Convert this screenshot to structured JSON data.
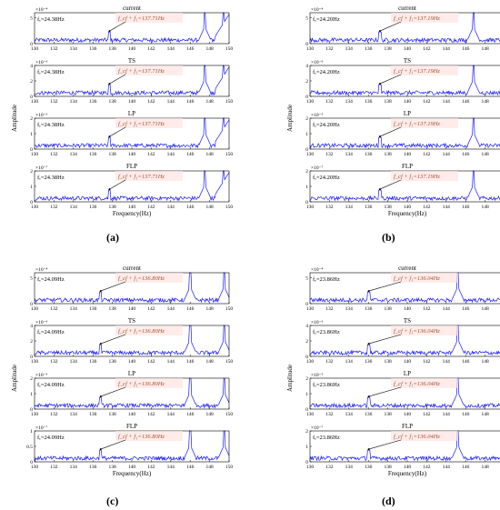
{
  "figure": {
    "panel_labels": [
      "(a)",
      "(b)",
      "(c)",
      "(d)"
    ],
    "x_axis_label": "Frequency(Hz)",
    "y_axis_label": "Amplitude"
  },
  "colors": {
    "signal": "#1a1aff",
    "annotation_text": "#a0522d",
    "highlight_fill": "#ffe4e1",
    "fundamental_text": "#000000"
  },
  "chart_data": [
    {
      "panel": "(a)",
      "type": "line",
      "xlim": [
        130,
        150
      ],
      "xticks": [
        "130",
        "132",
        "134",
        "136",
        "138",
        "140",
        "142",
        "144",
        "146",
        "148",
        "150"
      ],
      "xlabel": "Frequency(Hz)",
      "subplots": [
        {
          "title": "current",
          "exponent": "×10⁻⁴",
          "ylim": [
            0,
            6
          ],
          "yticks": [
            "0",
            "5"
          ],
          "fundamental": "fₑ=24.38Hz",
          "feature_freq": 137.71,
          "feature_label": "f_cf + f₁=137.71Hz",
          "dominant_peaks": [
            147.5,
            149.4
          ]
        },
        {
          "title": "TS",
          "exponent": "×10⁻⁶",
          "ylim": [
            0,
            4
          ],
          "yticks": [
            "0",
            "2",
            "4"
          ],
          "fundamental": "fₑ=24.38Hz",
          "feature_freq": 137.71,
          "feature_label": "f_cf + f₁=137.71Hz",
          "dominant_peaks": [
            147.5,
            149.4
          ]
        },
        {
          "title": "LP",
          "exponent": "×10⁻⁵",
          "ylim": [
            0,
            2
          ],
          "yticks": [
            "0",
            "1",
            "2"
          ],
          "fundamental": "fₑ=24.38Hz",
          "feature_freq": 137.71,
          "feature_label": "f_cf + f₁=137.71Hz",
          "dominant_peaks": [
            147.5,
            149.4
          ]
        },
        {
          "title": "FLP",
          "exponent": "×10⁻⁷",
          "ylim": [
            0,
            2
          ],
          "yticks": [
            "0",
            "1",
            "2"
          ],
          "fundamental": "fₑ=24.38Hz",
          "feature_freq": 137.71,
          "feature_label": "f_cf + f₁=137.71Hz",
          "dominant_peaks": [
            147.5,
            149.4
          ]
        }
      ]
    },
    {
      "panel": "(b)",
      "type": "line",
      "xlim": [
        130,
        150
      ],
      "xticks": [
        "130",
        "132",
        "134",
        "136",
        "138",
        "140",
        "142",
        "144",
        "146",
        "148",
        "150"
      ],
      "xlabel": "Frequency(Hz)",
      "subplots": [
        {
          "title": "current",
          "exponent": "×10⁻⁴",
          "ylim": [
            0,
            6
          ],
          "yticks": [
            "0",
            "5"
          ],
          "fundamental": "fₑ=24.20Hz",
          "feature_freq": 137.19,
          "feature_label": "f_cf + f₁=137.19Hz",
          "dominant_peaks": [
            146.8
          ]
        },
        {
          "title": "TS",
          "exponent": "×10⁻⁶",
          "ylim": [
            0,
            4
          ],
          "yticks": [
            "0",
            "2",
            "4"
          ],
          "fundamental": "fₑ=24.20Hz",
          "feature_freq": 137.19,
          "feature_label": "f_cf + f₁=137.19Hz",
          "dominant_peaks": [
            146.8
          ]
        },
        {
          "title": "LP",
          "exponent": "×10⁻⁵",
          "ylim": [
            0,
            2
          ],
          "yticks": [
            "0",
            "1",
            "2"
          ],
          "fundamental": "fₑ=24.20Hz",
          "feature_freq": 137.19,
          "feature_label": "f_cf + f₁=137.19Hz",
          "dominant_peaks": [
            146.8
          ]
        },
        {
          "title": "FLP",
          "exponent": "×10⁻⁷",
          "ylim": [
            0,
            2
          ],
          "yticks": [
            "0",
            "1",
            "2"
          ],
          "fundamental": "fₑ=24.20Hz",
          "feature_freq": 137.19,
          "feature_label": "f_cf + f₁=137.19Hz",
          "dominant_peaks": [
            146.8
          ]
        }
      ]
    },
    {
      "panel": "(c)",
      "type": "line",
      "xlim": [
        130,
        150
      ],
      "xticks": [
        "130",
        "132",
        "134",
        "136",
        "138",
        "140",
        "142",
        "144",
        "146",
        "148",
        "150"
      ],
      "xlabel": "Frequency(Hz)",
      "subplots": [
        {
          "title": "current",
          "exponent": "×10⁻⁴",
          "ylim": [
            0,
            6
          ],
          "yticks": [
            "0",
            "5"
          ],
          "fundamental": "fₑ=24.09Hz",
          "feature_freq": 136.8,
          "feature_label": "f_cf + f₁=136.80Hz",
          "dominant_peaks": [
            146.0,
            149.5
          ]
        },
        {
          "title": "TS",
          "exponent": "×10⁻⁶",
          "ylim": [
            0,
            4
          ],
          "yticks": [
            "0",
            "2",
            "4"
          ],
          "fundamental": "fₑ=24.09Hz",
          "feature_freq": 136.8,
          "feature_label": "f_cf + f₁=136.80Hz",
          "dominant_peaks": [
            146.0,
            149.5
          ]
        },
        {
          "title": "LP",
          "exponent": "×10⁻⁵",
          "ylim": [
            0,
            2
          ],
          "yticks": [
            "0",
            "1",
            "2"
          ],
          "fundamental": "fₑ=24.09Hz",
          "feature_freq": 136.8,
          "feature_label": "f_cf + f₁=136.80Hz",
          "dominant_peaks": [
            146.0,
            149.5
          ]
        },
        {
          "title": "FLP",
          "exponent": "×10⁻⁷",
          "ylim": [
            0,
            1
          ],
          "yticks": [
            "0",
            "0.5",
            "1"
          ],
          "fundamental": "fₑ=24.09Hz",
          "feature_freq": 136.8,
          "feature_label": "f_cf + f₁=136.80Hz",
          "dominant_peaks": [
            146.0,
            149.5
          ]
        }
      ]
    },
    {
      "panel": "(d)",
      "type": "line",
      "xlim": [
        130,
        150
      ],
      "xticks": [
        "130",
        "132",
        "134",
        "136",
        "138",
        "140",
        "142",
        "144",
        "146",
        "148",
        "150"
      ],
      "xlabel": "Frequency(Hz)",
      "subplots": [
        {
          "title": "current",
          "exponent": "×10⁻⁴",
          "ylim": [
            0,
            6
          ],
          "yticks": [
            "0",
            "5"
          ],
          "fundamental": "fₑ=23.86Hz",
          "feature_freq": 136.04,
          "feature_label": "f_cf + f₁=136.04Hz",
          "dominant_peaks": [
            145.2
          ]
        },
        {
          "title": "TS",
          "exponent": "×10⁻⁶",
          "ylim": [
            0,
            4
          ],
          "yticks": [
            "0",
            "2",
            "4"
          ],
          "fundamental": "fₑ=23.86Hz",
          "feature_freq": 136.04,
          "feature_label": "f_cf + f₁=136.04Hz",
          "dominant_peaks": [
            145.2
          ]
        },
        {
          "title": "LP",
          "exponent": "×10⁻⁵",
          "ylim": [
            0,
            2
          ],
          "yticks": [
            "0",
            "1",
            "2"
          ],
          "fundamental": "fₑ=23.86Hz",
          "feature_freq": 136.04,
          "feature_label": "f_cf + f₁=136.04Hz",
          "dominant_peaks": [
            145.2
          ]
        },
        {
          "title": "FLP",
          "exponent": "×10⁻⁷",
          "ylim": [
            0,
            2
          ],
          "yticks": [
            "0",
            "1",
            "2"
          ],
          "fundamental": "fₑ=23.86Hz",
          "feature_freq": 136.04,
          "feature_label": "f_cf + f₁=136.04Hz",
          "dominant_peaks": [
            145.2
          ]
        }
      ]
    }
  ]
}
